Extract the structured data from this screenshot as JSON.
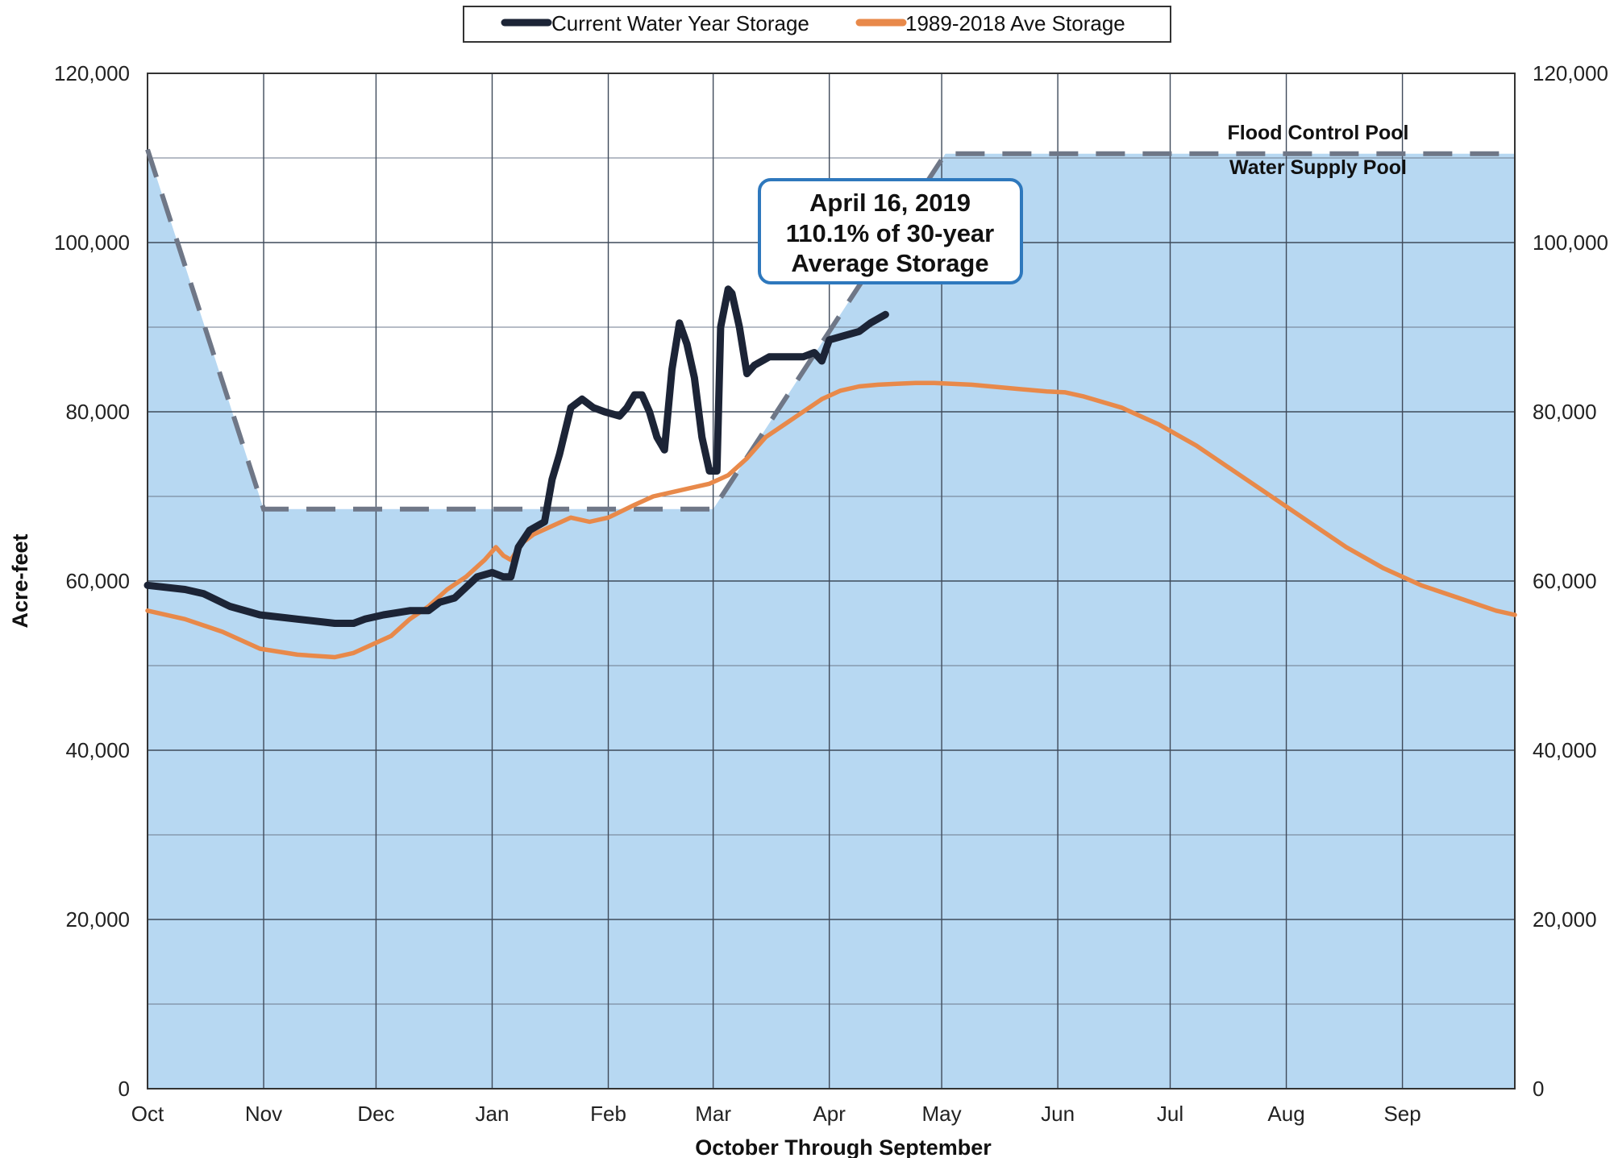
{
  "chart_data": {
    "type": "line",
    "xlabel": "October Through September",
    "ylabel": "Acre-feet",
    "x_domain": [
      0,
      365
    ],
    "ylim": [
      0,
      120000
    ],
    "yticks": [
      0,
      20000,
      40000,
      60000,
      80000,
      100000,
      120000
    ],
    "ytick_labels": [
      "0",
      "20,000",
      "40,000",
      "60,000",
      "80,000",
      "100,000",
      "120,000"
    ],
    "months": [
      {
        "label": "Oct",
        "day": 0
      },
      {
        "label": "Nov",
        "day": 31
      },
      {
        "label": "Dec",
        "day": 61
      },
      {
        "label": "Jan",
        "day": 92
      },
      {
        "label": "Feb",
        "day": 123
      },
      {
        "label": "Mar",
        "day": 151
      },
      {
        "label": "Apr",
        "day": 182
      },
      {
        "label": "May",
        "day": 212
      },
      {
        "label": "Jun",
        "day": 243
      },
      {
        "label": "Jul",
        "day": 273
      },
      {
        "label": "Aug",
        "day": 304
      },
      {
        "label": "Sep",
        "day": 335
      }
    ],
    "grid": true,
    "legend_position": "top-center",
    "series": [
      {
        "name": "Current Water Year Storage",
        "color": "#1c2436",
        "points": [
          [
            0,
            59500
          ],
          [
            10,
            59000
          ],
          [
            15,
            58500
          ],
          [
            22,
            57000
          ],
          [
            30,
            56000
          ],
          [
            40,
            55500
          ],
          [
            50,
            55000
          ],
          [
            55,
            55000
          ],
          [
            58,
            55500
          ],
          [
            63,
            56000
          ],
          [
            70,
            56500
          ],
          [
            75,
            56500
          ],
          [
            78,
            57500
          ],
          [
            82,
            58000
          ],
          [
            88,
            60500
          ],
          [
            92,
            61000
          ],
          [
            95,
            60500
          ],
          [
            97,
            60500
          ],
          [
            99,
            64000
          ],
          [
            102,
            66000
          ],
          [
            106,
            67000
          ],
          [
            108,
            72000
          ],
          [
            110,
            75000
          ],
          [
            113,
            80500
          ],
          [
            116,
            81500
          ],
          [
            119,
            80500
          ],
          [
            122,
            80000
          ],
          [
            126,
            79500
          ],
          [
            128,
            80500
          ],
          [
            130,
            82000
          ],
          [
            132,
            82000
          ],
          [
            134,
            80000
          ],
          [
            136,
            77000
          ],
          [
            138,
            75500
          ],
          [
            140,
            85000
          ],
          [
            142,
            90500
          ],
          [
            144,
            88000
          ],
          [
            146,
            84000
          ],
          [
            148,
            77000
          ],
          [
            150,
            73000
          ],
          [
            152,
            73000
          ],
          [
            153,
            90000
          ],
          [
            155,
            94500
          ],
          [
            156,
            94000
          ],
          [
            158,
            90000
          ],
          [
            160,
            84500
          ],
          [
            162,
            85500
          ],
          [
            166,
            86500
          ],
          [
            170,
            86500
          ],
          [
            175,
            86500
          ],
          [
            178,
            87000
          ],
          [
            180,
            86000
          ],
          [
            182,
            88500
          ],
          [
            186,
            89000
          ],
          [
            190,
            89500
          ],
          [
            193,
            90500
          ],
          [
            197,
            91500
          ]
        ]
      },
      {
        "name": "1989-2018 Ave Storage",
        "color": "#e8894a",
        "points": [
          [
            0,
            56500
          ],
          [
            10,
            55500
          ],
          [
            20,
            54000
          ],
          [
            30,
            52000
          ],
          [
            40,
            51300
          ],
          [
            50,
            51000
          ],
          [
            55,
            51500
          ],
          [
            60,
            52500
          ],
          [
            65,
            53500
          ],
          [
            70,
            55500
          ],
          [
            75,
            57000
          ],
          [
            80,
            59000
          ],
          [
            85,
            60500
          ],
          [
            90,
            62500
          ],
          [
            93,
            64000
          ],
          [
            95,
            63000
          ],
          [
            97,
            62500
          ],
          [
            100,
            64500
          ],
          [
            103,
            65500
          ],
          [
            108,
            66500
          ],
          [
            113,
            67500
          ],
          [
            118,
            67000
          ],
          [
            123,
            67500
          ],
          [
            130,
            69000
          ],
          [
            135,
            70000
          ],
          [
            140,
            70500
          ],
          [
            145,
            71000
          ],
          [
            150,
            71500
          ],
          [
            155,
            72500
          ],
          [
            160,
            74500
          ],
          [
            165,
            77000
          ],
          [
            170,
            78500
          ],
          [
            175,
            80000
          ],
          [
            180,
            81500
          ],
          [
            185,
            82500
          ],
          [
            190,
            83000
          ],
          [
            195,
            83200
          ],
          [
            200,
            83300
          ],
          [
            205,
            83400
          ],
          [
            210,
            83400
          ],
          [
            220,
            83200
          ],
          [
            230,
            82800
          ],
          [
            240,
            82400
          ],
          [
            245,
            82300
          ],
          [
            250,
            81800
          ],
          [
            260,
            80500
          ],
          [
            270,
            78500
          ],
          [
            280,
            76000
          ],
          [
            290,
            73000
          ],
          [
            300,
            70000
          ],
          [
            310,
            67000
          ],
          [
            320,
            64000
          ],
          [
            330,
            61500
          ],
          [
            340,
            59500
          ],
          [
            350,
            58000
          ],
          [
            360,
            56500
          ],
          [
            365,
            56000
          ]
        ]
      }
    ],
    "pool_line": {
      "name": "Flood Control Pool / Water Supply Pool boundary",
      "points": [
        [
          0,
          111000
        ],
        [
          31,
          68500
        ],
        [
          151,
          68500
        ],
        [
          213,
          110500
        ],
        [
          365,
          110500
        ]
      ]
    },
    "area_fill_color": "#b7d8f2",
    "pool_line_color": "#6f7787",
    "annotations": {
      "flood_control_pool": "Flood Control Pool",
      "water_supply_pool": "Water Supply Pool",
      "callout_line1": "April 16, 2019",
      "callout_line2": "110.1% of 30-year",
      "callout_line3": "Average Storage",
      "callout_border_color": "#2e78bd"
    }
  }
}
